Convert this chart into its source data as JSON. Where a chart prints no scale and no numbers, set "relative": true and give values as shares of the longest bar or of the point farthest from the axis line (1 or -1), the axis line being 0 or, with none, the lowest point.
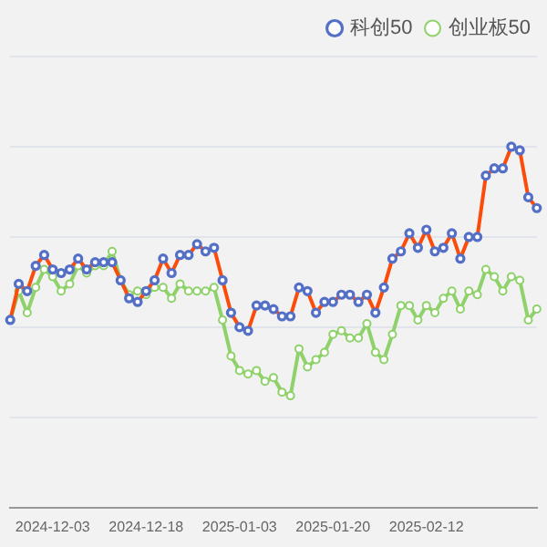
{
  "chart_data": {
    "type": "line",
    "relative": true,
    "grid": "y",
    "legend": "top right",
    "marker": "circle",
    "categories": [
      null,
      null,
      null,
      null,
      null,
      "2024-12-03",
      null,
      null,
      null,
      null,
      null,
      null,
      null,
      null,
      null,
      null,
      "2024-12-18",
      null,
      null,
      null,
      null,
      null,
      null,
      null,
      null,
      null,
      null,
      "2025-01-03",
      null,
      null,
      null,
      null,
      null,
      null,
      null,
      null,
      null,
      null,
      "2025-01-20",
      null,
      null,
      null,
      null,
      null,
      null,
      null,
      null,
      null,
      null,
      "2025-02-12",
      null,
      null,
      null,
      null,
      null,
      null,
      null,
      null,
      null,
      null,
      null,
      null,
      null
    ],
    "series": [
      {
        "name": "科创50",
        "color": "#fc4c0c",
        "values": [
          0.52,
          0.62,
          0.6,
          0.67,
          0.7,
          0.66,
          0.65,
          0.66,
          0.69,
          0.66,
          0.68,
          0.68,
          0.68,
          0.63,
          0.58,
          0.57,
          0.6,
          0.63,
          0.69,
          0.65,
          0.7,
          0.7,
          0.73,
          0.71,
          0.72,
          0.63,
          0.54,
          0.5,
          0.49,
          0.56,
          0.56,
          0.55,
          0.53,
          0.53,
          0.61,
          0.6,
          0.54,
          0.57,
          0.57,
          0.59,
          0.59,
          0.57,
          0.59,
          0.54,
          0.61,
          0.69,
          0.71,
          0.76,
          0.72,
          0.77,
          0.71,
          0.72,
          0.76,
          0.69,
          0.75,
          0.75,
          0.92,
          0.94,
          0.94,
          1,
          0.99,
          0.86,
          0.83
        ]
      },
      {
        "name": "创业板50",
        "color": "#8fd16a",
        "values": [
          0.52,
          0.6,
          0.54,
          0.61,
          0.66,
          0.64,
          0.6,
          0.62,
          0.67,
          0.65,
          0.67,
          0.67,
          0.71,
          0.63,
          0.59,
          0.6,
          0.59,
          0.61,
          0.61,
          0.58,
          0.62,
          0.6,
          0.6,
          0.6,
          0.61,
          0.52,
          0.42,
          0.38,
          0.37,
          0.38,
          0.35,
          0.36,
          0.32,
          0.31,
          0.44,
          0.39,
          0.41,
          0.43,
          0.48,
          0.49,
          0.47,
          0.47,
          0.51,
          0.43,
          0.41,
          0.48,
          0.56,
          0.56,
          0.52,
          0.56,
          0.54,
          0.58,
          0.6,
          0.55,
          0.6,
          0.59,
          0.66,
          0.64,
          0.6,
          0.64,
          0.63,
          0.52,
          0.55
        ]
      }
    ]
  }
}
